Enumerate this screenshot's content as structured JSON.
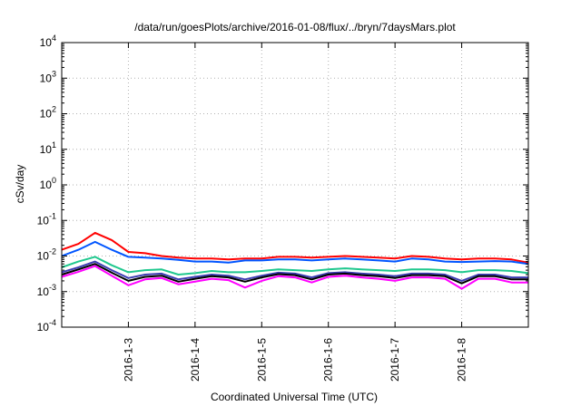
{
  "chart_data": {
    "type": "line",
    "title": "/data/run/goesPlots/archive/2016-01-08/flux/../bryn/7daysMars.plot",
    "xlabel": "Coordinated Universal Time (UTC)",
    "ylabel": "cSv/day",
    "yscale": "log",
    "grid": true,
    "xlim": [
      "2016-01-02",
      "2016-01-09"
    ],
    "ylim": [
      0.0001,
      10000
    ],
    "x_ticks": [
      "2016-1-3",
      "2016-1-4",
      "2016-1-5",
      "2016-1-6",
      "2016-1-7",
      "2016-1-8"
    ],
    "y_ticks": [
      {
        "mantissa": "10",
        "exp": "4"
      },
      {
        "mantissa": "10",
        "exp": "3"
      },
      {
        "mantissa": "10",
        "exp": "2"
      },
      {
        "mantissa": "10",
        "exp": "1"
      },
      {
        "mantissa": "10",
        "exp": "0"
      },
      {
        "mantissa": "10",
        "exp": "-1"
      },
      {
        "mantissa": "10",
        "exp": "-2"
      },
      {
        "mantissa": "10",
        "exp": "-3"
      },
      {
        "mantissa": "10",
        "exp": "-4"
      }
    ],
    "x": [
      "2016-01-02 00:00",
      "2016-01-02 06:00",
      "2016-01-02 12:00",
      "2016-01-02 18:00",
      "2016-01-03 00:00",
      "2016-01-03 06:00",
      "2016-01-03 12:00",
      "2016-01-03 18:00",
      "2016-01-04 00:00",
      "2016-01-04 06:00",
      "2016-01-04 12:00",
      "2016-01-04 18:00",
      "2016-01-05 00:00",
      "2016-01-05 06:00",
      "2016-01-05 12:00",
      "2016-01-05 18:00",
      "2016-01-06 00:00",
      "2016-01-06 06:00",
      "2016-01-06 12:00",
      "2016-01-06 18:00",
      "2016-01-07 00:00",
      "2016-01-07 06:00",
      "2016-01-07 12:00",
      "2016-01-07 18:00",
      "2016-01-08 00:00",
      "2016-01-08 06:00",
      "2016-01-08 12:00",
      "2016-01-08 18:00",
      "2016-01-09 00:00"
    ],
    "series": [
      {
        "color": "#ff0000",
        "values": [
          0.015,
          0.022,
          0.045,
          0.028,
          0.013,
          0.012,
          0.01,
          0.009,
          0.0085,
          0.0085,
          0.008,
          0.0085,
          0.0085,
          0.0095,
          0.0095,
          0.009,
          0.0095,
          0.01,
          0.0095,
          0.009,
          0.0085,
          0.01,
          0.0095,
          0.0085,
          0.008,
          0.0085,
          0.0085,
          0.008,
          0.0065
        ]
      },
      {
        "color": "#0055ff",
        "values": [
          0.01,
          0.015,
          0.025,
          0.015,
          0.0095,
          0.009,
          0.0085,
          0.0078,
          0.007,
          0.007,
          0.0065,
          0.0075,
          0.0075,
          0.008,
          0.008,
          0.0075,
          0.008,
          0.0085,
          0.008,
          0.0075,
          0.007,
          0.0085,
          0.008,
          0.007,
          0.0068,
          0.007,
          0.0072,
          0.007,
          0.006
        ]
      },
      {
        "color": "#1fc88e",
        "values": [
          0.0048,
          0.007,
          0.0095,
          0.0055,
          0.0035,
          0.004,
          0.0042,
          0.003,
          0.0033,
          0.0038,
          0.0035,
          0.0035,
          0.0038,
          0.0042,
          0.004,
          0.0038,
          0.0042,
          0.0045,
          0.0042,
          0.004,
          0.0038,
          0.0042,
          0.0042,
          0.004,
          0.0035,
          0.004,
          0.004,
          0.0038,
          0.0033
        ]
      },
      {
        "color": "#3d3db3",
        "values": [
          0.0035,
          0.0048,
          0.007,
          0.004,
          0.0024,
          0.003,
          0.0032,
          0.0022,
          0.0026,
          0.003,
          0.0028,
          0.0022,
          0.0028,
          0.0034,
          0.0032,
          0.0025,
          0.0033,
          0.0035,
          0.0032,
          0.003,
          0.0027,
          0.0032,
          0.0032,
          0.003,
          0.002,
          0.003,
          0.003,
          0.0025,
          0.0025
        ]
      },
      {
        "color": "#000000",
        "values": [
          0.003,
          0.0042,
          0.006,
          0.0034,
          0.002,
          0.0026,
          0.0028,
          0.0019,
          0.0023,
          0.0027,
          0.0025,
          0.0019,
          0.0025,
          0.0031,
          0.0029,
          0.0022,
          0.003,
          0.0032,
          0.0029,
          0.0027,
          0.0024,
          0.0029,
          0.0029,
          0.0027,
          0.0017,
          0.0027,
          0.0027,
          0.0022,
          0.0022
        ]
      },
      {
        "color": "#ff00ff",
        "values": [
          0.0026,
          0.0036,
          0.0052,
          0.0028,
          0.0015,
          0.0022,
          0.0024,
          0.0016,
          0.0019,
          0.0023,
          0.0021,
          0.0013,
          0.002,
          0.0027,
          0.0025,
          0.0018,
          0.0026,
          0.0028,
          0.0025,
          0.0023,
          0.002,
          0.0025,
          0.0025,
          0.0023,
          0.0012,
          0.0023,
          0.0023,
          0.0018,
          0.0018
        ]
      }
    ]
  }
}
